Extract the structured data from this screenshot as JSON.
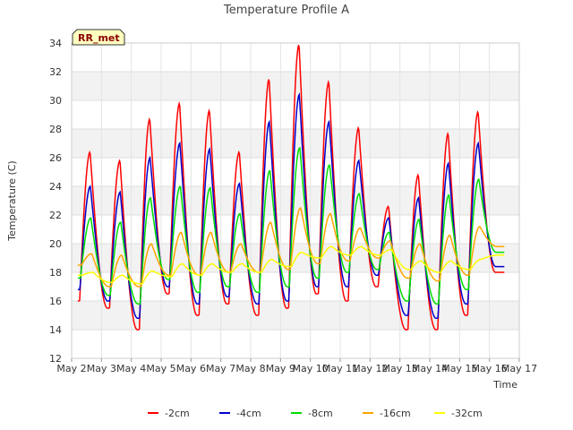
{
  "chart_data": {
    "type": "line",
    "title": "Temperature Profile A",
    "xlabel": "Time",
    "ylabel": "Temperature (C)",
    "badge": "RR_met",
    "ylim": [
      12,
      34
    ],
    "yticks": [
      12,
      14,
      16,
      18,
      20,
      22,
      24,
      26,
      28,
      30,
      32,
      34
    ],
    "xlim": [
      "2024-05-02",
      "2024-05-17"
    ],
    "xticks": [
      "May 2",
      "May 3",
      "May 4",
      "May 5",
      "May 6",
      "May 7",
      "May 8",
      "May 9",
      "May 10",
      "May 11",
      "May 12",
      "May 13",
      "May 14",
      "May 15",
      "May 16",
      "May 17"
    ],
    "grid": true,
    "legend_position": "bottom",
    "days": [
      "May 2",
      "May 3",
      "May 4",
      "May 5",
      "May 6",
      "May 7",
      "May 8",
      "May 9",
      "May 10",
      "May 11",
      "May 12",
      "May 13",
      "May 14",
      "May 15",
      "May 16"
    ],
    "series": [
      {
        "name": "-2cm",
        "color": "#ff0000",
        "daily_min": [
          16.0,
          15.5,
          14.0,
          16.5,
          15.0,
          15.8,
          15.0,
          15.5,
          16.5,
          16.0,
          17.0,
          14.0,
          14.0,
          15.0,
          18.0
        ],
        "daily_max": [
          26.4,
          25.8,
          28.7,
          29.8,
          29.3,
          26.4,
          31.5,
          33.9,
          31.3,
          28.1,
          22.6,
          24.8,
          27.7,
          29.2,
          18.0
        ]
      },
      {
        "name": "-4cm",
        "color": "#0000cc",
        "daily_min": [
          16.8,
          16.0,
          14.8,
          17.0,
          15.8,
          16.3,
          15.8,
          16.0,
          17.0,
          17.0,
          17.8,
          15.0,
          14.8,
          15.8,
          18.4
        ],
        "daily_max": [
          24.0,
          23.6,
          26.0,
          27.0,
          26.6,
          24.2,
          28.5,
          30.4,
          28.5,
          25.8,
          21.8,
          23.2,
          25.6,
          27.0,
          18.4
        ]
      },
      {
        "name": "-8cm",
        "color": "#00dd00",
        "daily_min": [
          17.6,
          16.4,
          15.8,
          17.5,
          16.6,
          17.0,
          16.6,
          17.0,
          17.6,
          18.0,
          18.2,
          16.0,
          15.8,
          16.8,
          19.4
        ],
        "daily_max": [
          21.8,
          21.5,
          23.2,
          24.0,
          23.9,
          22.1,
          25.1,
          26.7,
          25.5,
          23.5,
          20.8,
          21.7,
          23.4,
          24.5,
          19.4
        ]
      },
      {
        "name": "-16cm",
        "color": "#ffa500",
        "daily_min": [
          18.5,
          17.0,
          17.0,
          17.8,
          17.8,
          18.0,
          18.0,
          18.2,
          18.6,
          18.8,
          19.0,
          17.6,
          17.4,
          17.8,
          19.8
        ],
        "daily_max": [
          19.3,
          19.2,
          20.0,
          20.8,
          20.8,
          20.0,
          21.5,
          22.5,
          22.1,
          21.1,
          20.2,
          20.0,
          20.6,
          21.2,
          19.8
        ]
      },
      {
        "name": "-32cm",
        "color": "#ffff00",
        "daily_min": [
          17.8,
          17.3,
          17.2,
          17.7,
          17.8,
          18.0,
          18.0,
          18.4,
          19.0,
          19.2,
          19.2,
          18.2,
          18.0,
          18.2,
          19.2
        ],
        "daily_max": [
          18.0,
          17.8,
          18.1,
          18.6,
          18.6,
          18.6,
          18.9,
          19.4,
          19.8,
          19.8,
          19.6,
          18.8,
          18.8,
          18.9,
          19.2
        ]
      }
    ]
  }
}
